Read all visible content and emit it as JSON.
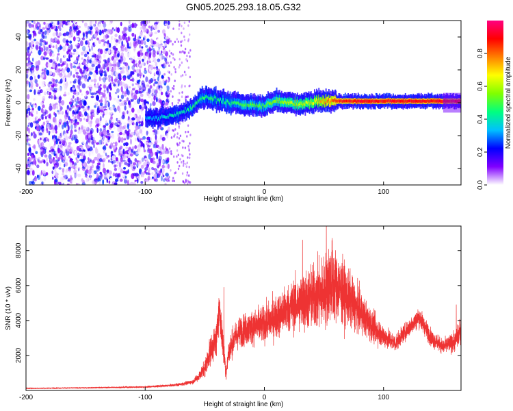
{
  "title": "GN05.2025.293.18.05.G32",
  "chart_data": [
    {
      "type": "heatmap",
      "name": "spectrogram",
      "xlabel": "Height of straight line (km)",
      "ylabel": "Frequency (Hz)",
      "xlim": [
        -200,
        165
      ],
      "ylim": [
        -50,
        50
      ],
      "xticks": [
        -200,
        -100,
        0,
        100
      ],
      "yticks": [
        -40,
        -20,
        0,
        20,
        40
      ],
      "colorbar": {
        "label": "Normalized spectral amplitude",
        "range": [
          0,
          1
        ],
        "ticks": [
          0.0,
          0.2,
          0.4,
          0.6,
          0.8
        ],
        "tick_labels": [
          "0.0",
          "0.2",
          "0.4",
          "0.6",
          "0.8"
        ],
        "colors": [
          "#ffffff",
          "#8000ff",
          "#0000ff",
          "#00c0ff",
          "#00ff80",
          "#80ff00",
          "#ffff00",
          "#ff8000",
          "#ff0000",
          "#ff0080"
        ]
      },
      "noise_region_x": [
        -200,
        -80
      ],
      "signal_ridge": {
        "x": [
          -100,
          -90,
          -80,
          -70,
          -60,
          -55,
          -50,
          -40,
          -30,
          -20,
          -10,
          0,
          5,
          10,
          20,
          30,
          40,
          50,
          60,
          80,
          100,
          120,
          140,
          165
        ],
        "freq": [
          -9,
          -10,
          -8,
          -6,
          -2,
          2,
          3,
          2,
          0,
          -1,
          -1,
          -2,
          0,
          1,
          0,
          -1,
          0,
          1,
          1,
          1,
          1,
          1,
          1,
          1
        ],
        "amplitude": [
          0.3,
          0.35,
          0.4,
          0.4,
          0.45,
          0.45,
          0.45,
          0.45,
          0.45,
          0.5,
          0.5,
          0.5,
          0.55,
          0.55,
          0.6,
          0.6,
          0.65,
          0.75,
          0.85,
          0.9,
          0.9,
          0.9,
          0.9,
          0.9
        ]
      }
    },
    {
      "type": "line",
      "name": "snr",
      "xlabel": "Height of straight line (km)",
      "ylabel": "SNR (10 * v/v)",
      "xlim": [
        -200,
        165
      ],
      "ylim": [
        0,
        9400
      ],
      "xticks": [
        -200,
        -100,
        0,
        100
      ],
      "yticks": [
        2000,
        4000,
        6000,
        8000
      ],
      "color": "#ee3333",
      "series": [
        {
          "name": "SNR",
          "x": [
            -200,
            -150,
            -100,
            -80,
            -70,
            -60,
            -55,
            -50,
            -45,
            -40,
            -38,
            -35,
            -32,
            -30,
            -25,
            -20,
            -10,
            0,
            10,
            20,
            30,
            40,
            50,
            55,
            60,
            70,
            80,
            90,
            100,
            110,
            120,
            130,
            140,
            150,
            160,
            165
          ],
          "y": [
            120,
            150,
            200,
            280,
            350,
            500,
            800,
            1300,
            2300,
            3000,
            4800,
            2800,
            1000,
            2200,
            3000,
            3400,
            3600,
            3800,
            4200,
            4700,
            5000,
            5300,
            5600,
            6200,
            6000,
            5300,
            4500,
            3700,
            3100,
            2700,
            3500,
            4200,
            3000,
            2500,
            2800,
            3500
          ]
        }
      ],
      "envelope_amplitude": [
        40,
        40,
        60,
        80,
        100,
        150,
        300,
        600,
        1000,
        1300,
        1400,
        1300,
        500,
        900,
        1000,
        1100,
        1200,
        1300,
        1500,
        1700,
        2000,
        2300,
        2600,
        2900,
        2600,
        2000,
        1500,
        1100,
        800,
        600,
        600,
        700,
        600,
        500,
        700,
        900
      ],
      "peaks": [
        {
          "x": 52,
          "y": 9400
        },
        {
          "x": 57,
          "y": 8700
        },
        {
          "x": 32,
          "y": 8600
        },
        {
          "x": -34,
          "y": 5900
        },
        {
          "x": 161,
          "y": 4900
        },
        {
          "x": 127,
          "y": 4300
        }
      ]
    }
  ]
}
